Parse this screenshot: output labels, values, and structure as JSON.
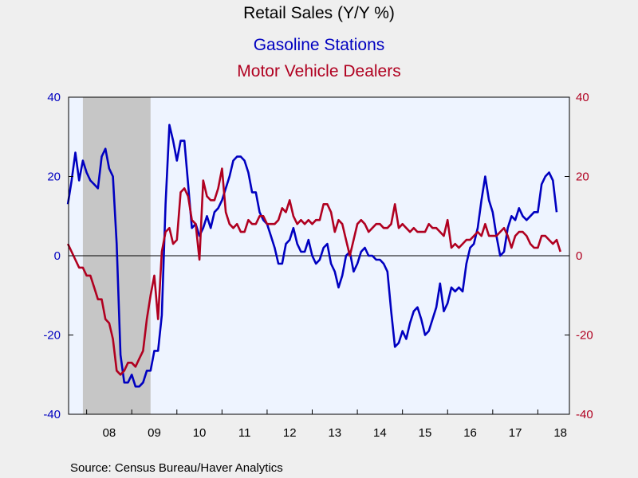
{
  "chart_data": {
    "type": "line",
    "title": "Retail Sales (Y/Y %)",
    "source": "Source:  Census Bureau/Haver Analytics",
    "colors": {
      "gas": "#0000c0",
      "motor": "#b00020",
      "recession": "#c6c6c6",
      "plot_bg": "#eef4ff",
      "background": "#efefef"
    },
    "left_axis": {
      "min": -40,
      "max": 40,
      "ticks": [
        -40,
        -20,
        0,
        20,
        40
      ]
    },
    "right_axis": {
      "min": -40,
      "max": 40,
      "ticks": [
        -40,
        -20,
        0,
        20,
        40
      ]
    },
    "x_axis": {
      "start": 2007.6,
      "end": 2018.7,
      "ticks": [
        {
          "label": "08",
          "year": 2008
        },
        {
          "label": "09",
          "year": 2009
        },
        {
          "label": "10",
          "year": 2010
        },
        {
          "label": "11",
          "year": 2011
        },
        {
          "label": "12",
          "year": 2012
        },
        {
          "label": "13",
          "year": 2013
        },
        {
          "label": "14",
          "year": 2014
        },
        {
          "label": "15",
          "year": 2015
        },
        {
          "label": "16",
          "year": 2016
        },
        {
          "label": "17",
          "year": 2017
        },
        {
          "label": "18",
          "year": 2018
        }
      ]
    },
    "recession": {
      "start": "2007-12",
      "end": "2009-06"
    },
    "series": [
      {
        "name": "Gasoline Stations",
        "axis": "left",
        "color": "#0000c0",
        "points": [
          [
            "2007-08",
            13
          ],
          [
            "2007-09",
            19
          ],
          [
            "2007-10",
            26
          ],
          [
            "2007-11",
            19
          ],
          [
            "2007-12",
            24
          ],
          [
            "2008-01",
            21
          ],
          [
            "2008-02",
            19
          ],
          [
            "2008-03",
            18
          ],
          [
            "2008-04",
            17
          ],
          [
            "2008-05",
            25
          ],
          [
            "2008-06",
            27
          ],
          [
            "2008-07",
            22
          ],
          [
            "2008-08",
            20
          ],
          [
            "2008-09",
            3
          ],
          [
            "2008-10",
            -25
          ],
          [
            "2008-11",
            -32
          ],
          [
            "2008-12",
            -32
          ],
          [
            "2009-01",
            -30
          ],
          [
            "2009-02",
            -33
          ],
          [
            "2009-03",
            -33
          ],
          [
            "2009-04",
            -32
          ],
          [
            "2009-05",
            -29
          ],
          [
            "2009-06",
            -29
          ],
          [
            "2009-07",
            -24
          ],
          [
            "2009-08",
            -24
          ],
          [
            "2009-09",
            -15
          ],
          [
            "2009-10",
            13
          ],
          [
            "2009-11",
            33
          ],
          [
            "2009-12",
            29
          ],
          [
            "2010-01",
            24
          ],
          [
            "2010-02",
            29
          ],
          [
            "2010-03",
            29
          ],
          [
            "2010-04",
            18
          ],
          [
            "2010-05",
            7
          ],
          [
            "2010-06",
            8
          ],
          [
            "2010-07",
            5
          ],
          [
            "2010-08",
            7
          ],
          [
            "2010-09",
            10
          ],
          [
            "2010-10",
            7
          ],
          [
            "2010-11",
            11
          ],
          [
            "2010-12",
            12
          ],
          [
            "2011-01",
            14
          ],
          [
            "2011-02",
            17
          ],
          [
            "2011-03",
            20
          ],
          [
            "2011-04",
            24
          ],
          [
            "2011-05",
            25
          ],
          [
            "2011-06",
            25
          ],
          [
            "2011-07",
            24
          ],
          [
            "2011-08",
            21
          ],
          [
            "2011-09",
            16
          ],
          [
            "2011-10",
            16
          ],
          [
            "2011-11",
            11
          ],
          [
            "2011-12",
            9
          ],
          [
            "2012-01",
            8
          ],
          [
            "2012-02",
            5
          ],
          [
            "2012-03",
            2
          ],
          [
            "2012-04",
            -2
          ],
          [
            "2012-05",
            -2
          ],
          [
            "2012-06",
            3
          ],
          [
            "2012-07",
            4
          ],
          [
            "2012-08",
            7
          ],
          [
            "2012-09",
            3
          ],
          [
            "2012-10",
            1
          ],
          [
            "2012-11",
            1
          ],
          [
            "2012-12",
            4
          ],
          [
            "2013-01",
            0
          ],
          [
            "2013-02",
            -2
          ],
          [
            "2013-03",
            -1
          ],
          [
            "2013-04",
            2
          ],
          [
            "2013-05",
            3
          ],
          [
            "2013-06",
            -2
          ],
          [
            "2013-07",
            -4
          ],
          [
            "2013-08",
            -8
          ],
          [
            "2013-09",
            -5
          ],
          [
            "2013-10",
            0
          ],
          [
            "2013-11",
            1
          ],
          [
            "2013-12",
            -4
          ],
          [
            "2014-01",
            -2
          ],
          [
            "2014-02",
            1
          ],
          [
            "2014-03",
            2
          ],
          [
            "2014-04",
            0
          ],
          [
            "2014-05",
            0
          ],
          [
            "2014-06",
            -1
          ],
          [
            "2014-07",
            -1
          ],
          [
            "2014-08",
            -2
          ],
          [
            "2014-09",
            -4
          ],
          [
            "2014-10",
            -14
          ],
          [
            "2014-11",
            -23
          ],
          [
            "2014-12",
            -22
          ],
          [
            "2015-01",
            -19
          ],
          [
            "2015-02",
            -21
          ],
          [
            "2015-03",
            -17
          ],
          [
            "2015-04",
            -14
          ],
          [
            "2015-05",
            -13
          ],
          [
            "2015-06",
            -16
          ],
          [
            "2015-07",
            -20
          ],
          [
            "2015-08",
            -19
          ],
          [
            "2015-09",
            -16
          ],
          [
            "2015-10",
            -13
          ],
          [
            "2015-11",
            -7
          ],
          [
            "2015-12",
            -14
          ],
          [
            "2016-01",
            -12
          ],
          [
            "2016-02",
            -8
          ],
          [
            "2016-03",
            -9
          ],
          [
            "2016-04",
            -8
          ],
          [
            "2016-05",
            -9
          ],
          [
            "2016-06",
            -2
          ],
          [
            "2016-07",
            2
          ],
          [
            "2016-08",
            3
          ],
          [
            "2016-09",
            7
          ],
          [
            "2016-10",
            14
          ],
          [
            "2016-11",
            20
          ],
          [
            "2016-12",
            14
          ],
          [
            "2017-01",
            11
          ],
          [
            "2017-02",
            5
          ],
          [
            "2017-03",
            0
          ],
          [
            "2017-04",
            1
          ],
          [
            "2017-05",
            7
          ],
          [
            "2017-06",
            10
          ],
          [
            "2017-07",
            9
          ],
          [
            "2017-08",
            12
          ],
          [
            "2017-09",
            10
          ],
          [
            "2017-10",
            9
          ],
          [
            "2017-11",
            10
          ],
          [
            "2017-12",
            11
          ],
          [
            "2018-01",
            11
          ],
          [
            "2018-02",
            18
          ],
          [
            "2018-03",
            20
          ],
          [
            "2018-04",
            21
          ],
          [
            "2018-05",
            19
          ],
          [
            "2018-06",
            11
          ]
        ]
      },
      {
        "name": "Motor Vehicle Dealers",
        "axis": "right",
        "color": "#b00020",
        "points": [
          [
            "2007-08",
            3
          ],
          [
            "2007-09",
            1
          ],
          [
            "2007-10",
            -1
          ],
          [
            "2007-11",
            -3
          ],
          [
            "2007-12",
            -3
          ],
          [
            "2008-01",
            -5
          ],
          [
            "2008-02",
            -5
          ],
          [
            "2008-03",
            -8
          ],
          [
            "2008-04",
            -11
          ],
          [
            "2008-05",
            -11
          ],
          [
            "2008-06",
            -16
          ],
          [
            "2008-07",
            -17
          ],
          [
            "2008-08",
            -21
          ],
          [
            "2008-09",
            -29
          ],
          [
            "2008-10",
            -30
          ],
          [
            "2008-11",
            -29
          ],
          [
            "2008-12",
            -27
          ],
          [
            "2009-01",
            -27
          ],
          [
            "2009-02",
            -28
          ],
          [
            "2009-03",
            -26
          ],
          [
            "2009-04",
            -24
          ],
          [
            "2009-05",
            -16
          ],
          [
            "2009-06",
            -10
          ],
          [
            "2009-07",
            -5
          ],
          [
            "2009-08",
            -16
          ],
          [
            "2009-09",
            1
          ],
          [
            "2009-10",
            6
          ],
          [
            "2009-11",
            7
          ],
          [
            "2009-12",
            3
          ],
          [
            "2010-01",
            4
          ],
          [
            "2010-02",
            16
          ],
          [
            "2010-03",
            17
          ],
          [
            "2010-04",
            15
          ],
          [
            "2010-05",
            9
          ],
          [
            "2010-06",
            8
          ],
          [
            "2010-07",
            -1
          ],
          [
            "2010-08",
            19
          ],
          [
            "2010-09",
            15
          ],
          [
            "2010-10",
            14
          ],
          [
            "2010-11",
            14
          ],
          [
            "2010-12",
            17
          ],
          [
            "2011-01",
            22
          ],
          [
            "2011-02",
            11
          ],
          [
            "2011-03",
            8
          ],
          [
            "2011-04",
            7
          ],
          [
            "2011-05",
            8
          ],
          [
            "2011-06",
            6
          ],
          [
            "2011-07",
            6
          ],
          [
            "2011-08",
            9
          ],
          [
            "2011-09",
            8
          ],
          [
            "2011-10",
            8
          ],
          [
            "2011-11",
            10
          ],
          [
            "2011-12",
            10
          ],
          [
            "2012-01",
            8
          ],
          [
            "2012-02",
            8
          ],
          [
            "2012-03",
            8
          ],
          [
            "2012-04",
            9
          ],
          [
            "2012-05",
            12
          ],
          [
            "2012-06",
            11
          ],
          [
            "2012-07",
            14
          ],
          [
            "2012-08",
            10
          ],
          [
            "2012-09",
            8
          ],
          [
            "2012-10",
            9
          ],
          [
            "2012-11",
            8
          ],
          [
            "2012-12",
            9
          ],
          [
            "2013-01",
            8
          ],
          [
            "2013-02",
            9
          ],
          [
            "2013-03",
            9
          ],
          [
            "2013-04",
            13
          ],
          [
            "2013-05",
            13
          ],
          [
            "2013-06",
            11
          ],
          [
            "2013-07",
            6
          ],
          [
            "2013-08",
            9
          ],
          [
            "2013-09",
            8
          ],
          [
            "2013-10",
            4
          ],
          [
            "2013-11",
            0
          ],
          [
            "2013-12",
            4
          ],
          [
            "2014-01",
            8
          ],
          [
            "2014-02",
            9
          ],
          [
            "2014-03",
            8
          ],
          [
            "2014-04",
            6
          ],
          [
            "2014-05",
            7
          ],
          [
            "2014-06",
            8
          ],
          [
            "2014-07",
            8
          ],
          [
            "2014-08",
            7
          ],
          [
            "2014-09",
            7
          ],
          [
            "2014-10",
            8
          ],
          [
            "2014-11",
            13
          ],
          [
            "2014-12",
            7
          ],
          [
            "2015-01",
            8
          ],
          [
            "2015-02",
            7
          ],
          [
            "2015-03",
            6
          ],
          [
            "2015-04",
            7
          ],
          [
            "2015-05",
            6
          ],
          [
            "2015-06",
            6
          ],
          [
            "2015-07",
            6
          ],
          [
            "2015-08",
            8
          ],
          [
            "2015-09",
            7
          ],
          [
            "2015-10",
            7
          ],
          [
            "2015-11",
            6
          ],
          [
            "2015-12",
            5
          ],
          [
            "2016-01",
            9
          ],
          [
            "2016-02",
            2
          ],
          [
            "2016-03",
            3
          ],
          [
            "2016-04",
            2
          ],
          [
            "2016-05",
            3
          ],
          [
            "2016-06",
            4
          ],
          [
            "2016-07",
            4
          ],
          [
            "2016-08",
            5
          ],
          [
            "2016-09",
            6
          ],
          [
            "2016-10",
            5
          ],
          [
            "2016-11",
            8
          ],
          [
            "2016-12",
            5
          ],
          [
            "2017-01",
            5
          ],
          [
            "2017-02",
            5
          ],
          [
            "2017-03",
            6
          ],
          [
            "2017-04",
            7
          ],
          [
            "2017-05",
            5
          ],
          [
            "2017-06",
            2
          ],
          [
            "2017-07",
            5
          ],
          [
            "2017-08",
            6
          ],
          [
            "2017-09",
            6
          ],
          [
            "2017-10",
            5
          ],
          [
            "2017-11",
            3
          ],
          [
            "2017-12",
            2
          ],
          [
            "2018-01",
            2
          ],
          [
            "2018-02",
            5
          ],
          [
            "2018-03",
            5
          ],
          [
            "2018-04",
            4
          ],
          [
            "2018-05",
            3
          ],
          [
            "2018-06",
            4
          ],
          [
            "2018-07",
            1
          ]
        ]
      }
    ]
  }
}
